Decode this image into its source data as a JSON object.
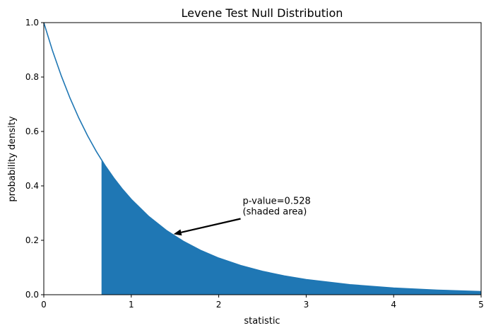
{
  "chart_data": {
    "type": "area",
    "title": "Levene Test Null Distribution",
    "xlabel": "statistic",
    "ylabel": "probability density",
    "xlim": [
      0,
      5
    ],
    "ylim": [
      0,
      1.0
    ],
    "xticks": [
      "0",
      "1",
      "2",
      "3",
      "4",
      "5"
    ],
    "yticks": [
      "0.0",
      "0.2",
      "0.4",
      "0.6",
      "0.8",
      "1.0"
    ],
    "grid": false,
    "x": [
      0,
      0.1,
      0.2,
      0.3,
      0.4,
      0.5,
      0.6,
      0.7,
      0.8,
      0.9,
      1.0,
      1.2,
      1.4,
      1.6,
      1.8,
      2.0,
      2.25,
      2.5,
      2.75,
      3.0,
      3.5,
      4.0,
      4.5,
      5.0
    ],
    "y": [
      1.0,
      0.8963,
      0.8043,
      0.7224,
      0.6496,
      0.5847,
      0.5268,
      0.4751,
      0.4289,
      0.3875,
      0.3505,
      0.2875,
      0.2366,
      0.1954,
      0.1619,
      0.1346,
      0.1073,
      0.0859,
      0.0691,
      0.0558,
      0.0368,
      0.0247,
      0.0168,
      0.0116
    ],
    "shade_from": 0.66,
    "line_color": "#1f77b4",
    "fill_color": "#1f77b4",
    "annotation": {
      "line1": "p-value=0.528",
      "line2": "(shaded area)",
      "points_to": [
        1.5,
        0.22
      ],
      "text_at": [
        2.25,
        0.3
      ]
    }
  }
}
